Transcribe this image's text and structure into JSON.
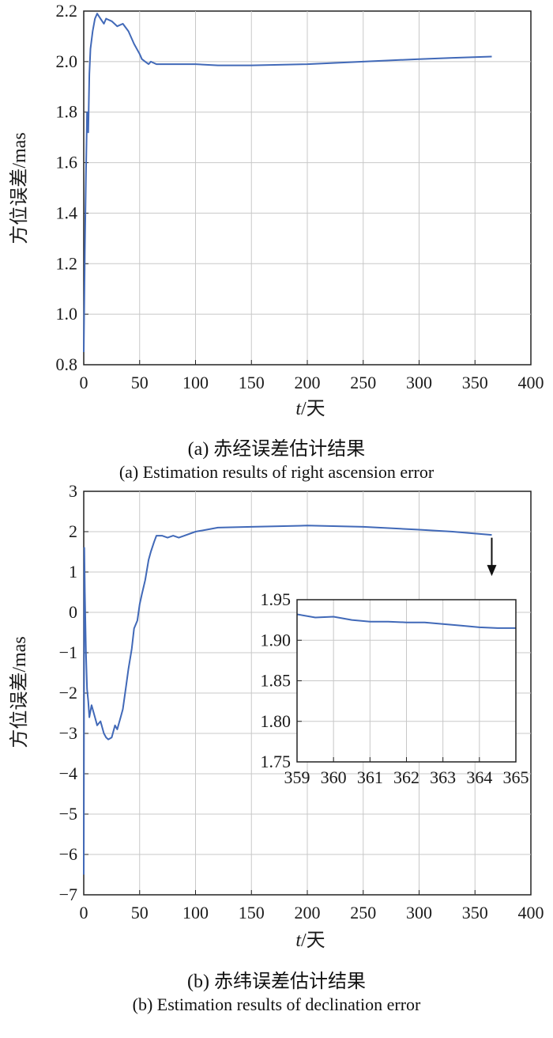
{
  "figure_a": {
    "caption_cn": "(a) 赤经误差估计结果",
    "caption_en": "(a) Estimation results of right ascension error",
    "ylabel": "方位误差/mas",
    "xlabel_var": "t",
    "xlabel_unit": "/天"
  },
  "figure_b": {
    "caption_cn": "(b) 赤纬误差估计结果",
    "caption_en": "(b) Estimation results of declination error",
    "ylabel": "方位误差/mas",
    "xlabel_var": "t",
    "xlabel_unit": "/天"
  },
  "colors": {
    "line": "#4169b8",
    "axis": "#222222",
    "grid": "#c8c8c8"
  },
  "chart_data": [
    {
      "type": "line",
      "xlabel": "t/天",
      "ylabel": "方位误差/mas",
      "xlim": [
        0,
        400
      ],
      "ylim": [
        0.8,
        2.2
      ],
      "xticks": [
        "0",
        "50",
        "100",
        "150",
        "200",
        "250",
        "300",
        "350",
        "400"
      ],
      "yticks": [
        "0.8",
        "1.0",
        "1.2",
        "1.4",
        "1.6",
        "1.8",
        "2.0",
        "2.2"
      ],
      "grid": true,
      "series": [
        {
          "x": [
            0,
            1,
            2,
            3,
            4,
            5,
            6,
            8,
            10,
            12,
            15,
            18,
            20,
            25,
            30,
            35,
            40,
            45,
            50,
            52,
            55,
            58,
            60,
            65,
            70,
            80,
            90,
            100,
            120,
            150,
            200,
            250,
            300,
            330,
            365
          ],
          "y": [
            0.85,
            1.25,
            1.55,
            1.8,
            1.72,
            1.95,
            2.05,
            2.12,
            2.17,
            2.19,
            2.17,
            2.15,
            2.17,
            2.16,
            2.14,
            2.15,
            2.12,
            2.07,
            2.03,
            2.01,
            2.0,
            1.99,
            2.0,
            1.99,
            1.99,
            1.99,
            1.99,
            1.99,
            1.985,
            1.985,
            1.99,
            2.0,
            2.01,
            2.015,
            2.02
          ]
        }
      ]
    },
    {
      "type": "line",
      "xlabel": "t/天",
      "ylabel": "方位误差/mas",
      "xlim": [
        0,
        400
      ],
      "ylim": [
        -7,
        3
      ],
      "xticks": [
        "0",
        "50",
        "100",
        "150",
        "200",
        "250",
        "300",
        "350",
        "400"
      ],
      "yticks": [
        "−7",
        "−6",
        "−5",
        "−4",
        "−3",
        "−2",
        "−1",
        "0",
        "1",
        "2",
        "3"
      ],
      "grid": true,
      "series": [
        {
          "x": [
            0,
            0.5,
            1,
            2,
            3,
            4,
            5,
            7,
            10,
            12,
            15,
            18,
            20,
            22,
            25,
            28,
            30,
            33,
            35,
            38,
            40,
            43,
            45,
            48,
            50,
            52,
            55,
            58,
            60,
            63,
            65,
            70,
            75,
            80,
            85,
            90,
            100,
            110,
            120,
            150,
            200,
            250,
            300,
            330,
            365
          ],
          "y": [
            -6.5,
            1.6,
            0.5,
            -1.0,
            -1.9,
            -2.2,
            -2.6,
            -2.3,
            -2.6,
            -2.8,
            -2.7,
            -3.0,
            -3.1,
            -3.15,
            -3.1,
            -2.8,
            -2.9,
            -2.6,
            -2.4,
            -1.8,
            -1.4,
            -0.9,
            -0.4,
            -0.2,
            0.2,
            0.45,
            0.8,
            1.3,
            1.5,
            1.75,
            1.9,
            1.9,
            1.85,
            1.9,
            1.85,
            1.9,
            2.0,
            2.05,
            2.1,
            2.12,
            2.15,
            2.12,
            2.05,
            2.0,
            1.92
          ]
        }
      ],
      "annotation": {
        "type": "arrow",
        "from": [
          365,
          1.85
        ],
        "to": [
          365,
          0.9
        ]
      },
      "inset": {
        "type": "line",
        "xlim": [
          359,
          365
        ],
        "ylim": [
          1.75,
          1.95
        ],
        "xticks": [
          "359",
          "360",
          "361",
          "362",
          "363",
          "364",
          "365"
        ],
        "yticks": [
          "1.75",
          "1.80",
          "1.85",
          "1.90",
          "1.95"
        ],
        "grid": true,
        "series": [
          {
            "x": [
              359,
              359.5,
              360,
              360.5,
              361,
              361.5,
              362,
              362.5,
              363,
              363.5,
              364,
              364.5,
              365
            ],
            "y": [
              1.932,
              1.928,
              1.929,
              1.925,
              1.923,
              1.923,
              1.922,
              1.922,
              1.92,
              1.918,
              1.916,
              1.915,
              1.915
            ]
          }
        ]
      }
    }
  ]
}
